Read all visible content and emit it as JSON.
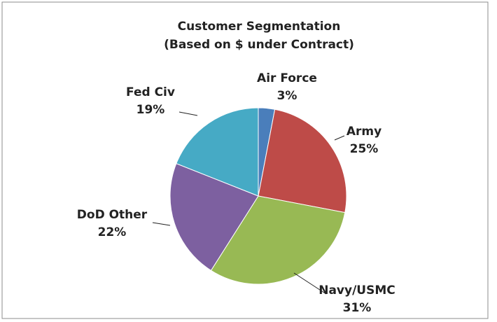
{
  "chart_data": {
    "type": "pie",
    "title": "Customer Segmentation",
    "subtitle": "(Based on $ under Contract)",
    "categories": [
      "Air Force",
      "Army",
      "Navy/USMC",
      "DoD Other",
      "Fed Civ"
    ],
    "values": [
      3,
      25,
      31,
      22,
      19
    ],
    "value_labels": [
      "3%",
      "25%",
      "31%",
      "22%",
      "19%"
    ],
    "colors": [
      "#4a7ebb",
      "#be4b48",
      "#98b954",
      "#7d60a0",
      "#46aac5"
    ]
  }
}
